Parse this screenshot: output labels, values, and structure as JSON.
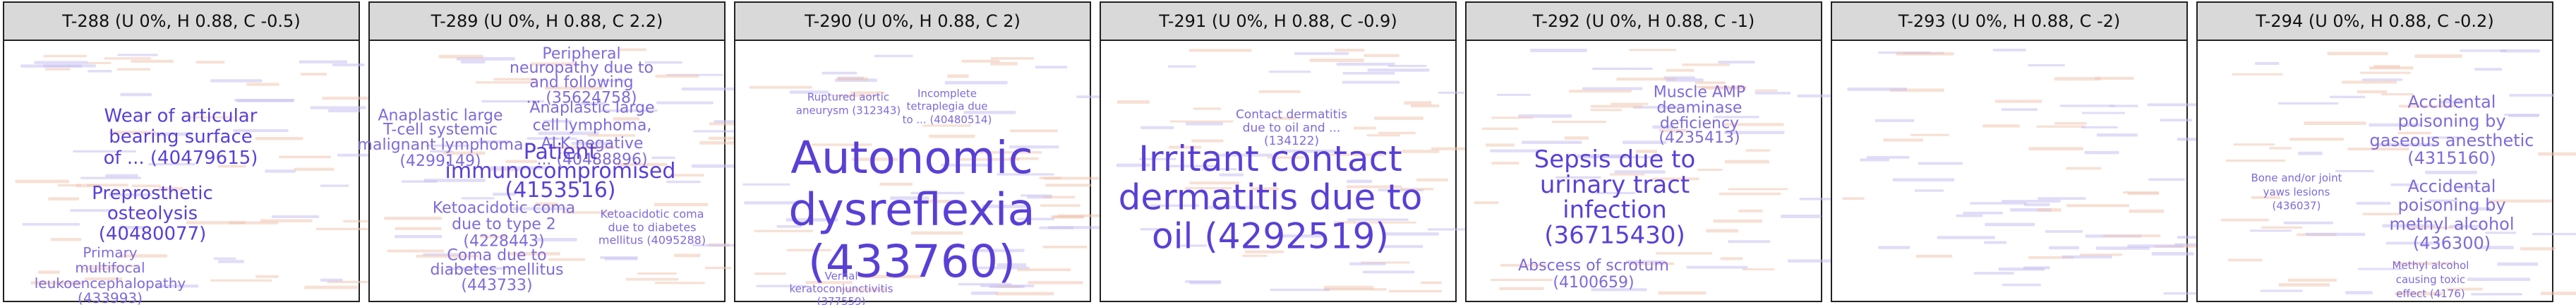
{
  "colors": {
    "primary": "#5a3fd6",
    "secondary": "#7f6ad9",
    "background_terms": "#e3a488",
    "header_bg": "#d9d9d9",
    "border": "#222222"
  },
  "chart_data": [
    {
      "type": "wordcloud",
      "title": "T-288 (U 0%, H 0.88, C -0.5)",
      "terms": [
        {
          "text": "Wear of articular",
          "size": 3
        },
        {
          "text": "bearing surface",
          "size": 3
        },
        {
          "text": "of ... (40479615)",
          "size": 3
        },
        {
          "text": "Preprosthetic",
          "size": 3
        },
        {
          "text": "osteolysis",
          "size": 3
        },
        {
          "text": "(40480077)",
          "size": 3
        },
        {
          "text": "Primary",
          "size": 2
        },
        {
          "text": "multifocal",
          "size": 2
        },
        {
          "text": "leukoencephalopathy",
          "size": 2
        },
        {
          "text": "(433993)",
          "size": 2
        }
      ]
    },
    {
      "type": "wordcloud",
      "title": "T-289 (U 0%, H 0.88, C 2.2)",
      "terms": [
        {
          "text": "Peripheral",
          "size": 2
        },
        {
          "text": "neuropathy due to",
          "size": 2
        },
        {
          "text": "and following",
          "size": 2
        },
        {
          "text": "... (35624758)",
          "size": 2
        },
        {
          "text": "Anaplastic large",
          "size": 2
        },
        {
          "text": "cell lymphoma,",
          "size": 2
        },
        {
          "text": "ALK negative",
          "size": 2
        },
        {
          "text": "... (40488896)",
          "size": 2
        },
        {
          "text": "Anaplastic large",
          "size": 2
        },
        {
          "text": "T-cell systemic",
          "size": 2
        },
        {
          "text": "malignant lymphoma",
          "size": 2
        },
        {
          "text": "(4299149)",
          "size": 2
        },
        {
          "text": "Patient",
          "size": 3
        },
        {
          "text": "immunocompromised",
          "size": 3
        },
        {
          "text": "(4153516)",
          "size": 3
        },
        {
          "text": "Ketoacidotic coma",
          "size": 2
        },
        {
          "text": "due to type 2",
          "size": 2
        },
        {
          "text": "(4228443)",
          "size": 2
        },
        {
          "text": "Ketoacidotic coma",
          "size": 1
        },
        {
          "text": "due to diabetes",
          "size": 1
        },
        {
          "text": "mellitus (4095288)",
          "size": 1
        },
        {
          "text": "Coma due to",
          "size": 2
        },
        {
          "text": "diabetes mellitus",
          "size": 2
        },
        {
          "text": "(443733)",
          "size": 2
        }
      ]
    },
    {
      "type": "wordcloud",
      "title": "T-290 (U 0%, H 0.88, C 2)",
      "terms": [
        {
          "text": "Ruptured aortic",
          "size": 1
        },
        {
          "text": "aneurysm (312343)",
          "size": 1
        },
        {
          "text": "Incomplete",
          "size": 1
        },
        {
          "text": "tetraplegia due",
          "size": 1
        },
        {
          "text": "to ... (40480514)",
          "size": 1
        },
        {
          "text": "Autonomic",
          "size": 5
        },
        {
          "text": "dysreflexia",
          "size": 5
        },
        {
          "text": "(433760)",
          "size": 5
        },
        {
          "text": "Vernal",
          "size": 1
        },
        {
          "text": "keratoconjunctivitis",
          "size": 1
        },
        {
          "text": "(377559)",
          "size": 1
        }
      ]
    },
    {
      "type": "wordcloud",
      "title": "T-291 (U 0%, H 0.88, C -0.9)",
      "terms": [
        {
          "text": "Contact dermatitis",
          "size": 1
        },
        {
          "text": "due to oil and ...",
          "size": 1
        },
        {
          "text": "(134122)",
          "size": 1
        },
        {
          "text": "Irritant contact",
          "size": 4
        },
        {
          "text": "dermatitis due to",
          "size": 4
        },
        {
          "text": "oil (4292519)",
          "size": 4
        }
      ]
    },
    {
      "type": "wordcloud",
      "title": "T-292 (U 0%, H 0.88, C -1)",
      "terms": [
        {
          "text": "Muscle AMP",
          "size": 2
        },
        {
          "text": "deaminase",
          "size": 2
        },
        {
          "text": "deficiency",
          "size": 2
        },
        {
          "text": "(4235413)",
          "size": 2
        },
        {
          "text": "Sepsis due to",
          "size": 3
        },
        {
          "text": "urinary tract",
          "size": 3
        },
        {
          "text": "infection",
          "size": 3
        },
        {
          "text": "(36715430)",
          "size": 3
        },
        {
          "text": "Abscess of scrotum",
          "size": 2
        },
        {
          "text": "(4100659)",
          "size": 2
        }
      ]
    },
    {
      "type": "wordcloud",
      "title": "T-293 (U 0%, H 0.88, C -2)",
      "terms": []
    },
    {
      "type": "wordcloud",
      "title": "T-294 (U 0%, H 0.88, C -0.2)",
      "terms": [
        {
          "text": "Accidental",
          "size": 2
        },
        {
          "text": "poisoning by",
          "size": 2
        },
        {
          "text": "gaseous anesthetic",
          "size": 2
        },
        {
          "text": "(4315160)",
          "size": 2
        },
        {
          "text": "Bone and/or joint",
          "size": 1
        },
        {
          "text": "yaws lesions",
          "size": 1
        },
        {
          "text": "(436037)",
          "size": 1
        },
        {
          "text": "Accidental",
          "size": 2
        },
        {
          "text": "poisoning by",
          "size": 2
        },
        {
          "text": "methyl alcohol",
          "size": 2
        },
        {
          "text": "(436300)",
          "size": 2
        },
        {
          "text": "Methyl alcohol",
          "size": 1
        },
        {
          "text": "causing toxic",
          "size": 1
        },
        {
          "text": "effect (4176)",
          "size": 1
        }
      ]
    }
  ]
}
